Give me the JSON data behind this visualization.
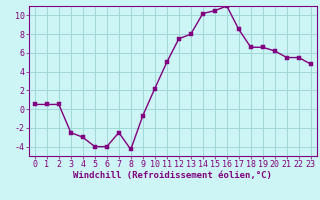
{
  "x": [
    0,
    1,
    2,
    3,
    4,
    5,
    6,
    7,
    8,
    9,
    10,
    11,
    12,
    13,
    14,
    15,
    16,
    17,
    18,
    19,
    20,
    21,
    22,
    23
  ],
  "y": [
    0.5,
    0.5,
    0.5,
    -2.5,
    -3.0,
    -4.0,
    -4.0,
    -2.5,
    -4.3,
    -0.7,
    2.2,
    5.0,
    7.5,
    8.0,
    10.2,
    10.5,
    11.0,
    8.5,
    6.6,
    6.6,
    6.2,
    5.5,
    5.5,
    4.8
  ],
  "line_color": "#800080",
  "marker_color": "#800080",
  "bg_color": "#cef5f5",
  "grid_color": "#a0d8d8",
  "xlabel": "Windchill (Refroidissement éolien,°C)",
  "ylabel": "",
  "ylim": [
    -5,
    11
  ],
  "xlim": [
    -0.5,
    23.5
  ],
  "yticks": [
    -4,
    -2,
    0,
    2,
    4,
    6,
    8,
    10
  ],
  "xticks": [
    0,
    1,
    2,
    3,
    4,
    5,
    6,
    7,
    8,
    9,
    10,
    11,
    12,
    13,
    14,
    15,
    16,
    17,
    18,
    19,
    20,
    21,
    22,
    23
  ],
  "line_width": 1.0,
  "marker_size": 2.5,
  "xlabel_fontsize": 6.5,
  "tick_fontsize": 6.0,
  "axis_color": "#800080",
  "tick_color": "#800080",
  "label_color": "#800080",
  "spine_color": "#800080"
}
